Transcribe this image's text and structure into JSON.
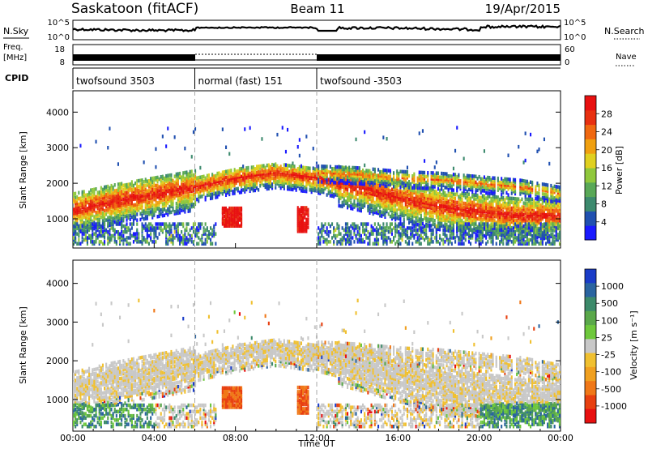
{
  "header": {
    "station": "Saskatoon (fitACF)",
    "beam": "Beam 11",
    "date": "19/Apr/2015"
  },
  "noise_panel": {
    "left_label": "N.Sky",
    "right_label": "N.Search",
    "left_ticks": [
      "10^5",
      "10^0"
    ],
    "right_ticks": [
      "10^5",
      "10^0"
    ]
  },
  "freq_panel": {
    "left_label_line1": "Freq.",
    "left_label_line2": "[MHz]",
    "left_ticks": [
      "8",
      "18"
    ],
    "right_label": "Nave",
    "right_ticks": [
      "0",
      "60"
    ]
  },
  "cpid": {
    "label": "CPID",
    "segments": [
      {
        "name": "twofsound 3503",
        "start": 0,
        "end": 6
      },
      {
        "name": "normal (fast) 151",
        "start": 6,
        "end": 12
      },
      {
        "name": "twofsound -3503",
        "start": 12,
        "end": 24
      }
    ]
  },
  "power_panel": {
    "ylabel": "Slant Range [km]",
    "yticks": [
      "1000",
      "2000",
      "3000",
      "4000"
    ],
    "colorbar_label": "Power [dB]",
    "colorbar_ticks": [
      "4",
      "8",
      "12",
      "16",
      "20",
      "24",
      "28"
    ],
    "colors": [
      "#1a1aff",
      "#2050b0",
      "#3d8a6e",
      "#59a857",
      "#90c83c",
      "#e0d020",
      "#f0a010",
      "#f06810",
      "#e83010",
      "#e81010"
    ]
  },
  "velocity_panel": {
    "ylabel": "Slant Range [km]",
    "yticks": [
      "1000",
      "2000",
      "3000",
      "4000"
    ],
    "colorbar_label": "Velocity [m s⁻¹]",
    "colorbar_ticks": [
      "1000",
      "500",
      "100",
      "25",
      "-25",
      "-100",
      "-500",
      "-1000"
    ],
    "colors": [
      "#1a3cc8",
      "#2a64a0",
      "#3c8a6a",
      "#5aa84a",
      "#6ec83c",
      "#c8c8c8",
      "#f0c030",
      "#f0a020",
      "#f07818",
      "#e84010",
      "#e81010"
    ]
  },
  "xaxis": {
    "label": "Time UT",
    "ticks": [
      "00:00",
      "04:00",
      "08:00",
      "12:00",
      "16:00",
      "20:00",
      "00:00"
    ]
  },
  "chart_data": {
    "type": "heatmap",
    "x_range_hours": [
      0,
      24
    ],
    "y_range_km": [
      180,
      4600
    ],
    "bands": [
      {
        "name": "main_echo",
        "points": [
          [
            0,
            1250
          ],
          [
            2,
            1500
          ],
          [
            4,
            1700
          ],
          [
            6,
            1900
          ],
          [
            8,
            2150
          ],
          [
            10,
            2300
          ],
          [
            12,
            2150
          ],
          [
            14,
            1900
          ],
          [
            16,
            1600
          ],
          [
            18,
            1350
          ],
          [
            20,
            1200
          ],
          [
            22,
            1100
          ],
          [
            24,
            1100
          ]
        ]
      },
      {
        "name": "upper_echo",
        "points": [
          [
            12,
            2300
          ],
          [
            14,
            2250
          ],
          [
            16,
            2150
          ],
          [
            18,
            2100
          ],
          [
            20,
            2000
          ],
          [
            22,
            1900
          ],
          [
            24,
            1700
          ]
        ]
      },
      {
        "name": "lower_blob_1",
        "points": [
          [
            7.3,
            1050
          ],
          [
            8.3,
            1050
          ]
        ]
      },
      {
        "name": "lower_blob_2",
        "points": [
          [
            11.0,
            1000
          ],
          [
            11.5,
            1000
          ]
        ]
      }
    ]
  }
}
